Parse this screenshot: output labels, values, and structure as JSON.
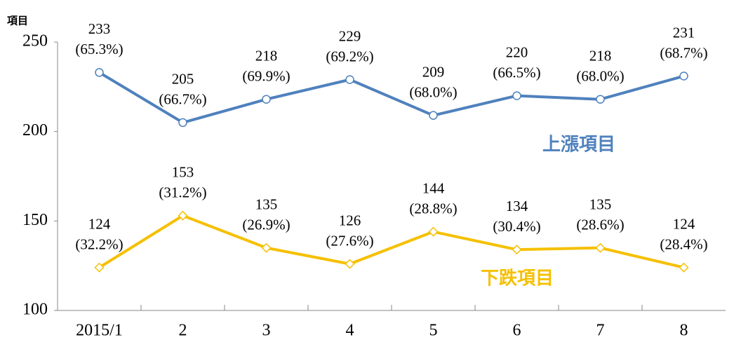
{
  "chart_data": {
    "type": "line",
    "y_axis_label": "項目",
    "categories": [
      "2015/1",
      "2",
      "3",
      "4",
      "5",
      "6",
      "7",
      "8"
    ],
    "series": [
      {
        "name": "上漲項目",
        "color": "#4f81bd",
        "marker": "circle",
        "values": [
          233,
          205,
          218,
          229,
          209,
          220,
          218,
          231
        ],
        "share_labels": [
          "(65.3%)",
          "(66.7%)",
          "(69.9%)",
          "(69.2%)",
          "(68.0%)",
          "(66.5%)",
          "(68.0%)",
          "(68.7%)"
        ]
      },
      {
        "name": "下跌項目",
        "color": "#f5c000",
        "marker": "diamond",
        "values": [
          124,
          153,
          135,
          126,
          144,
          134,
          135,
          124
        ],
        "share_labels": [
          "(32.2%)",
          "(31.2%)",
          "(26.9%)",
          "(27.6%)",
          "(28.8%)",
          "(30.4%)",
          "(28.6%)",
          "(28.4%)"
        ]
      }
    ],
    "ylim": [
      100,
      250
    ],
    "yticks": [
      100,
      150,
      200,
      250
    ],
    "grid": false
  }
}
